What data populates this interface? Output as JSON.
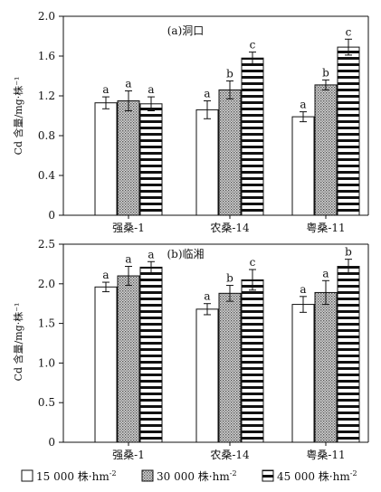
{
  "chart_data": [
    {
      "type": "bar",
      "title": "(a)洞口",
      "ylabel": "Cd 含量/mg·株⁻¹",
      "ylim": [
        0,
        2.0
      ],
      "yticks": [
        "0",
        "0.4",
        "0.8",
        "1.2",
        "1.6",
        "2.0"
      ],
      "ytick_values": [
        0,
        0.4,
        0.8,
        1.2,
        1.6,
        2.0
      ],
      "categories": [
        "强桑-1",
        "农桑-14",
        "粤桑-11"
      ],
      "series": [
        {
          "values": [
            1.13,
            1.06,
            0.99
          ],
          "errors": [
            0.06,
            0.09,
            0.05
          ],
          "letters": [
            "a",
            "a",
            "a"
          ]
        },
        {
          "values": [
            1.15,
            1.26,
            1.31
          ],
          "errors": [
            0.1,
            0.09,
            0.05
          ],
          "letters": [
            "a",
            "b",
            "b"
          ]
        },
        {
          "values": [
            1.12,
            1.58,
            1.69
          ],
          "errors": [
            0.07,
            0.06,
            0.08
          ],
          "letters": [
            "a",
            "c",
            "c"
          ]
        }
      ]
    },
    {
      "type": "bar",
      "title": "(b)临湘",
      "ylabel": "Cd 含量/mg·株⁻¹",
      "ylim": [
        0,
        2.5
      ],
      "yticks": [
        "0",
        "0.5",
        "1.0",
        "1.5",
        "2.0",
        "2.5"
      ],
      "ytick_values": [
        0,
        0.5,
        1.0,
        1.5,
        2.0,
        2.5
      ],
      "categories": [
        "强桑-1",
        "农桑-14",
        "粤桑-11"
      ],
      "series": [
        {
          "values": [
            1.96,
            1.68,
            1.74
          ],
          "errors": [
            0.06,
            0.07,
            0.1
          ],
          "letters": [
            "a",
            "a",
            "a"
          ]
        },
        {
          "values": [
            2.1,
            1.88,
            1.89
          ],
          "errors": [
            0.12,
            0.1,
            0.15
          ],
          "letters": [
            "a",
            "b",
            "a"
          ]
        },
        {
          "values": [
            2.21,
            2.05,
            2.22
          ],
          "errors": [
            0.07,
            0.13,
            0.09
          ],
          "letters": [
            "a",
            "c",
            "b"
          ]
        }
      ]
    }
  ],
  "legend": [
    {
      "label": "15 000 株·hm",
      "sup": "-2",
      "pattern": "white"
    },
    {
      "label": "30 000 株·hm",
      "sup": "-2",
      "pattern": "dots"
    },
    {
      "label": "45 000 株·hm",
      "sup": "-2",
      "pattern": "stripes"
    }
  ]
}
